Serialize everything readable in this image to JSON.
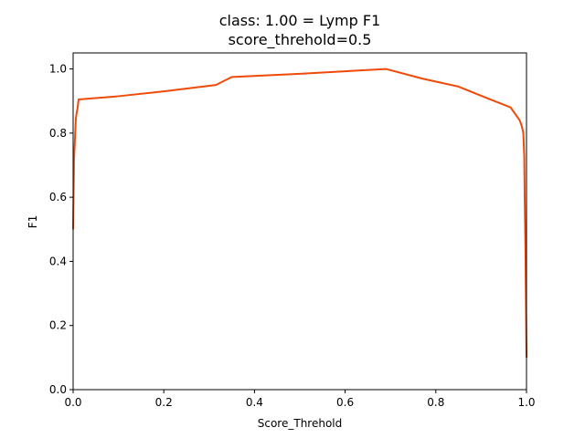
{
  "chart_data": {
    "type": "line",
    "title": "class: 1.00 = Lymp F1",
    "subtitle": "score_threhold=0.5",
    "xlabel": "Score_Threhold",
    "ylabel": "F1",
    "xlim": [
      0.0,
      1.0
    ],
    "ylim": [
      0.0,
      1.05
    ],
    "xticks": [
      0.0,
      0.2,
      0.4,
      0.6,
      0.8,
      1.0
    ],
    "xtick_labels": [
      "0.0",
      "0.2",
      "0.4",
      "0.6",
      "0.8",
      "1.0"
    ],
    "yticks": [
      0.0,
      0.2,
      0.4,
      0.6,
      0.8,
      1.0
    ],
    "ytick_labels": [
      "0.0",
      "0.2",
      "0.4",
      "0.6",
      "0.8",
      "1.0"
    ],
    "grid": false,
    "legend": "none",
    "line_color": "#f04a0a",
    "series": [
      {
        "x": [
          0.0,
          0.002,
          0.004,
          0.006,
          0.008,
          0.01,
          0.012,
          0.1,
          0.2,
          0.315,
          0.35,
          0.5,
          0.69,
          0.77,
          0.85,
          0.92,
          0.965,
          0.975,
          0.985,
          0.99,
          0.993,
          0.995,
          0.996,
          0.997,
          0.998,
          0.999,
          1.0
        ],
        "y": [
          0.5,
          0.72,
          0.78,
          0.845,
          0.865,
          0.88,
          0.905,
          0.915,
          0.93,
          0.95,
          0.975,
          0.985,
          1.0,
          0.97,
          0.945,
          0.905,
          0.88,
          0.86,
          0.84,
          0.82,
          0.8,
          0.73,
          0.6,
          0.5,
          0.4,
          0.25,
          0.1
        ]
      }
    ]
  }
}
